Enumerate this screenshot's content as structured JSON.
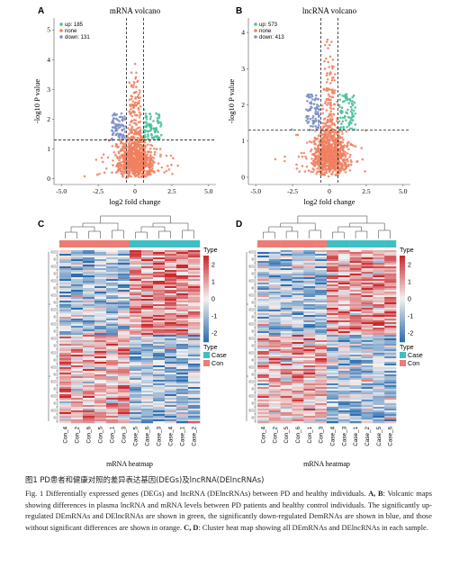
{
  "panels": [
    {
      "letter": "A",
      "title": "mRNA volcano",
      "xlabel": "log2 fold change",
      "ylabel": "-log10 P value",
      "xticks": [
        "-5.0",
        "-2.5",
        "0",
        "2.5",
        "5.0"
      ],
      "yticks": [
        "0",
        "1",
        "2",
        "3",
        "4",
        "5"
      ],
      "xlim": [
        -5.5,
        5.5
      ],
      "ylim": [
        -0.2,
        5.4
      ],
      "legend": [
        {
          "label": "up: 185",
          "color": "#4dbf9b"
        },
        {
          "label": "none",
          "color": "#f08060"
        },
        {
          "label": "down: 131",
          "color": "#7b8fc7"
        }
      ],
      "thresholds": {
        "x": [
          -0.585,
          0.585
        ],
        "y": 1.301
      }
    },
    {
      "letter": "B",
      "title": "lncRNA volcano",
      "xlabel": "log2 fold change",
      "ylabel": "-log10 P value",
      "xticks": [
        "-5.0",
        "-2.5",
        "0",
        "2.5",
        "5.0"
      ],
      "yticks": [
        "0",
        "1",
        "2",
        "3",
        "4"
      ],
      "xlim": [
        -5.5,
        5.5
      ],
      "ylim": [
        -0.2,
        4.4
      ],
      "legend": [
        {
          "label": "up: 573",
          "color": "#4dbf9b"
        },
        {
          "label": "none",
          "color": "#f08060"
        },
        {
          "label": "down: 413",
          "color": "#7b8fc7"
        }
      ],
      "thresholds": {
        "x": [
          -0.585,
          0.585
        ],
        "y": 1.301
      }
    }
  ],
  "heatmaps": [
    {
      "letter": "C",
      "xlabel": "mRNA heatmap",
      "samples": [
        "Con_4",
        "Con_2",
        "Con_6",
        "Con_5",
        "Con_1",
        "Con_3",
        "Case_5",
        "Case_6",
        "Case_3",
        "Case_4",
        "Case_1",
        "Case_2"
      ],
      "groups": [
        "Con",
        "Con",
        "Con",
        "Con",
        "Con",
        "Con",
        "Case",
        "Case",
        "Case",
        "Case",
        "Case",
        "Case"
      ],
      "legend_type_title": "Type",
      "scale_ticks": [
        "2",
        "1",
        "0",
        "-1",
        "-2"
      ],
      "group_legend_title": "Type",
      "group_legend": [
        "Case",
        "Con"
      ]
    },
    {
      "letter": "D",
      "xlabel": "mRNA heatmap",
      "samples": [
        "Con_4",
        "Con_2",
        "Con_5",
        "Con_6",
        "Con_1",
        "Con_3",
        "Case_4",
        "Case_3",
        "Case_1",
        "Case_2",
        "Case_5",
        "Case_6"
      ],
      "groups": [
        "Con",
        "Con",
        "Con",
        "Con",
        "Con",
        "Con",
        "Case",
        "Case",
        "Case",
        "Case",
        "Case",
        "Case"
      ],
      "legend_type_title": "Type",
      "scale_ticks": [
        "2",
        "1",
        "0",
        "-1",
        "-2"
      ],
      "group_legend_title": "Type",
      "group_legend": [
        "Case",
        "Con"
      ]
    }
  ],
  "colors": {
    "up": "#4dbf9b",
    "none": "#f08060",
    "down": "#7b8fc7",
    "case": "#3fbfc4",
    "con": "#ec7c74",
    "heat_high": "#cc2a2f",
    "heat_mid": "#f4f1f0",
    "heat_low": "#2c6fb0"
  },
  "caption": {
    "zh": "图1 PD患者和健康对照的差异表达基因(DEGs)及lncRNA(DElncRNAs)",
    "en_prefix": "Fig. 1  Differentially expressed genes (DEGs) and lncRNA (DElncRNAs) between PD and healthy individuals.",
    "en_ab": "A, B",
    "en_mid": ": Volcanic maps showing differences in plasma lncRNA and mRNA levels between PD patients and healthy control individuals. The significantly up-regulated DEmRNAs and DElncRNAs are shown in green, the significantly down-regulated DemRNAs are shown in blue, and those without significant differences are shown in orange.",
    "en_cd": "C, D",
    "en_end": ": Cluster heat map showing all DEmRNAs and DElncRNAs in each sample."
  }
}
